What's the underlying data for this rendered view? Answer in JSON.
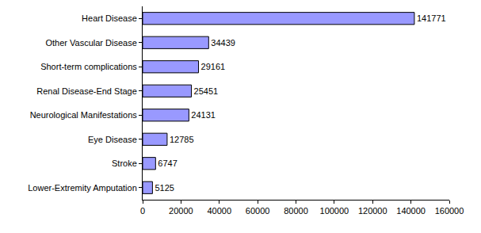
{
  "chart_data": {
    "type": "bar",
    "orientation": "horizontal",
    "categories": [
      "Heart Disease",
      "Other Vascular Disease",
      "Short-term complications",
      "Renal Disease-End Stage",
      "Neurological Manifestations",
      "Eye Disease",
      "Stroke",
      "Lower-Extremity Amputation"
    ],
    "values": [
      141771,
      34439,
      29161,
      25451,
      24131,
      12785,
      6747,
      5125
    ],
    "color": "#9999ff",
    "xlim": [
      0,
      160000
    ],
    "xticks": [
      0,
      20000,
      40000,
      60000,
      80000,
      100000,
      120000,
      140000,
      160000
    ],
    "grid": false,
    "data_labels": true
  }
}
